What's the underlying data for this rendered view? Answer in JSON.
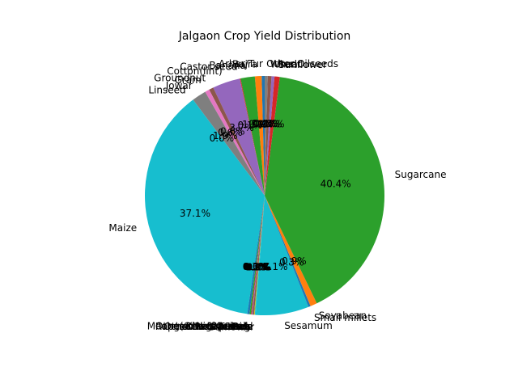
{
  "chart_data": {
    "type": "pie",
    "title": "Jalgaon Crop Yield Distribution",
    "start_angle_deg": 90,
    "direction": "counterclockwise",
    "percent_format": "one decimal",
    "slices": [
      {
        "label": "Arhar/Tur",
        "value": 0.4,
        "color": "#1f77b4"
      },
      {
        "label": "Bajra",
        "value": 0.9,
        "color": "#ff7f0e"
      },
      {
        "label": "Banana",
        "value": 1.9,
        "color": "#2ca02c"
      },
      {
        "label": "Castor seed",
        "value": 0.1,
        "color": "#d62728"
      },
      {
        "label": "Cotton(lint)",
        "value": 3.7,
        "color": "#9467bd"
      },
      {
        "label": "Groundnut",
        "value": 0.6,
        "color": "#8c564b"
      },
      {
        "label": "Gram",
        "value": 0.6,
        "color": "#e377c2"
      },
      {
        "label": "Jowar",
        "value": 1.9,
        "color": "#7f7f7f"
      },
      {
        "label": "Linseed",
        "value": 0.0,
        "color": "#bcbd22"
      },
      {
        "label": "Maize",
        "value": 37.1,
        "color": "#17becf"
      },
      {
        "label": "Moong(Green Gram)",
        "value": 0.3,
        "color": "#1f77b4"
      },
      {
        "label": "Niger seed",
        "value": 0.0,
        "color": "#ff7f0e"
      },
      {
        "label": "Other Kharif pulses",
        "value": 0.2,
        "color": "#2ca02c"
      },
      {
        "label": "Other Rabi pulses",
        "value": 0.1,
        "color": "#d62728"
      },
      {
        "label": "other oilseeds",
        "value": 0.1,
        "color": "#9467bd"
      },
      {
        "label": "Other Cereals",
        "value": 0.2,
        "color": "#8c564b"
      },
      {
        "label": "Ragi",
        "value": 0.0,
        "color": "#e377c2"
      },
      {
        "label": "Rapeseed &Mustard",
        "value": 0.0,
        "color": "#7f7f7f"
      },
      {
        "label": "Rice",
        "value": 0.1,
        "color": "#bcbd22"
      },
      {
        "label": "Safflower",
        "value": 0.1,
        "color": "#17becf"
      },
      {
        "label": "Sesamum",
        "value": 7.1,
        "color": "#17becf"
      },
      {
        "label": "Small millets",
        "value": 0.3,
        "color": "#1f77b4"
      },
      {
        "label": "Soyabean",
        "value": 0.9,
        "color": "#ff7f0e"
      },
      {
        "label": "Sugarcane",
        "value": 40.4,
        "color": "#2ca02c"
      },
      {
        "label": "Sunflower",
        "value": 0.7,
        "color": "#d62728"
      },
      {
        "label": "Urad",
        "value": 0.4,
        "color": "#9467bd"
      },
      {
        "label": "Wheat",
        "value": 0.5,
        "color": "#8c564b"
      },
      {
        "label": "Other Oilseeds",
        "value": 0.4,
        "color": "#7f7f7f"
      }
    ]
  }
}
